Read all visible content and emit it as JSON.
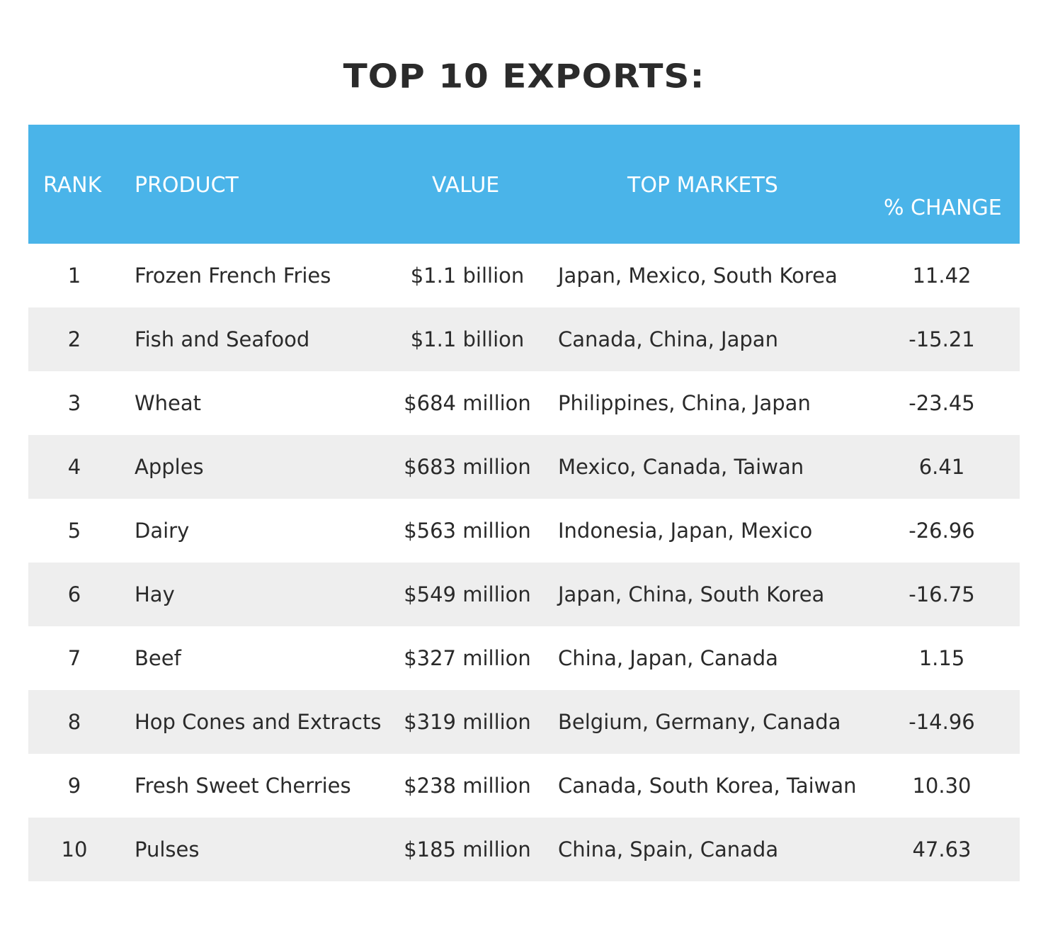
{
  "title": "TOP 10 EXPORTS:",
  "columns": {
    "rank": "RANK",
    "product": "PRODUCT",
    "value": "VALUE",
    "markets": "TOP MARKETS",
    "change": "% CHANGE"
  },
  "colors": {
    "header_bg": "#4ab4e9",
    "alt_row_bg": "#eeeeee",
    "text": "#2a2a2a"
  },
  "rows": [
    {
      "rank": "1",
      "product": "Frozen French Fries",
      "value": "$1.1 billion",
      "markets": "Japan, Mexico, South Korea",
      "change": "11.42"
    },
    {
      "rank": "2",
      "product": "Fish and Seafood",
      "value": "$1.1 billion",
      "markets": "Canada, China, Japan",
      "change": "-15.21"
    },
    {
      "rank": "3",
      "product": "Wheat",
      "value": "$684 million",
      "markets": "Philippines, China, Japan",
      "change": "-23.45"
    },
    {
      "rank": "4",
      "product": "Apples",
      "value": "$683 million",
      "markets": "Mexico, Canada, Taiwan",
      "change": "6.41"
    },
    {
      "rank": "5",
      "product": "Dairy",
      "value": "$563 million",
      "markets": "Indonesia, Japan, Mexico",
      "change": "-26.96"
    },
    {
      "rank": "6",
      "product": "Hay",
      "value": "$549 million",
      "markets": "Japan, China, South Korea",
      "change": "-16.75"
    },
    {
      "rank": "7",
      "product": "Beef",
      "value": "$327 million",
      "markets": "China, Japan, Canada",
      "change": "1.15"
    },
    {
      "rank": "8",
      "product": "Hop Cones and Extracts",
      "value": "$319 million",
      "markets": "Belgium, Germany, Canada",
      "change": "-14.96"
    },
    {
      "rank": "9",
      "product": "Fresh Sweet Cherries",
      "value": "$238 million",
      "markets": "Canada, South Korea, Taiwan",
      "change": "10.30"
    },
    {
      "rank": "10",
      "product": "Pulses",
      "value": "$185 million",
      "markets": "China, Spain, Canada",
      "change": "47.63"
    }
  ]
}
